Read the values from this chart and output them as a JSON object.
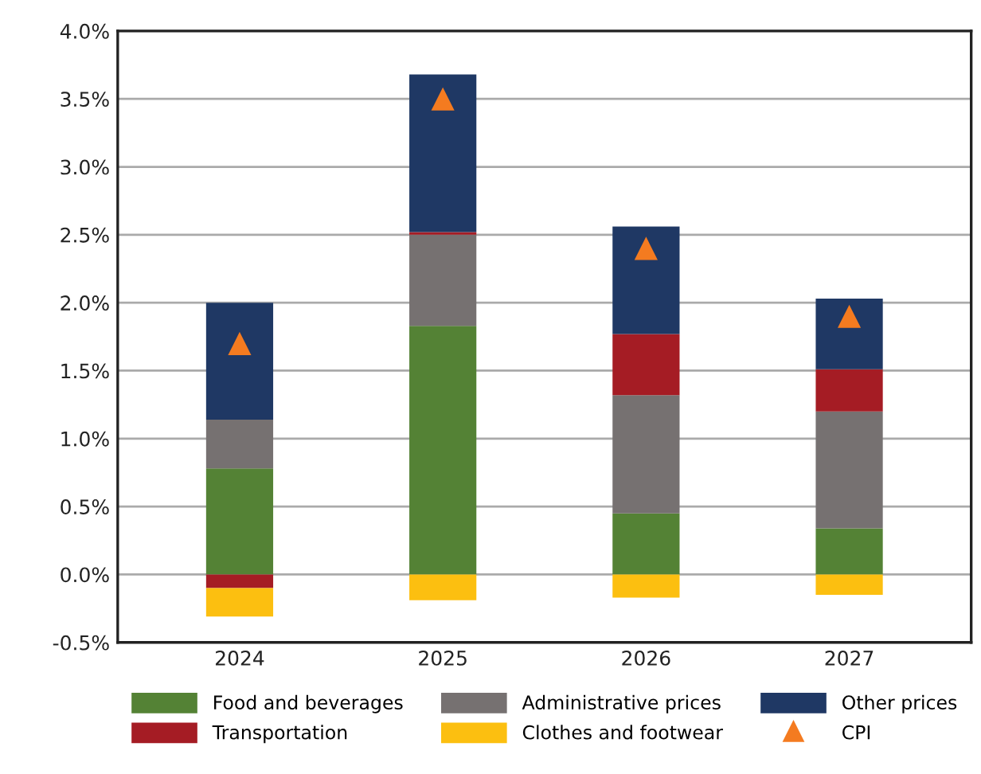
{
  "chart_data": {
    "type": "bar",
    "stacked": true,
    "categories": [
      "2024",
      "2025",
      "2026",
      "2027"
    ],
    "series": [
      {
        "name": "Food and beverages",
        "color": "#548235",
        "values": [
          0.78,
          1.83,
          0.45,
          0.34
        ]
      },
      {
        "name": "Administrative prices",
        "color": "#767171",
        "values": [
          0.36,
          0.67,
          0.87,
          0.86
        ]
      },
      {
        "name": "Transportation",
        "color": "#a51c24",
        "values": [
          -0.1,
          0.02,
          0.45,
          0.31
        ]
      },
      {
        "name": "Other prices",
        "color": "#1f3864",
        "values": [
          0.86,
          1.16,
          0.79,
          0.52
        ]
      },
      {
        "name": "Clothes and footwear",
        "color": "#fcbf10",
        "values": [
          -0.21,
          -0.19,
          -0.17,
          -0.15
        ]
      },
      {
        "name": "CPI",
        "type": "scatter",
        "marker": "triangle",
        "color": "#f47b20",
        "values": [
          1.7,
          3.5,
          2.4,
          1.9
        ]
      }
    ],
    "ylim": [
      -0.5,
      4.0
    ],
    "yticks": [
      {
        "value": -0.5,
        "label": "-0.5%"
      },
      {
        "value": 0.0,
        "label": "0.0%"
      },
      {
        "value": 0.5,
        "label": "0.5%"
      },
      {
        "value": 1.0,
        "label": "1.0%"
      },
      {
        "value": 1.5,
        "label": "1.5%"
      },
      {
        "value": 2.0,
        "label": "2.0%"
      },
      {
        "value": 2.5,
        "label": "2.5%"
      },
      {
        "value": 3.0,
        "label": "3.0%"
      },
      {
        "value": 3.5,
        "label": "3.5%"
      },
      {
        "value": 4.0,
        "label": "4.0%"
      }
    ],
    "grid": "y",
    "legend": "bottom"
  }
}
